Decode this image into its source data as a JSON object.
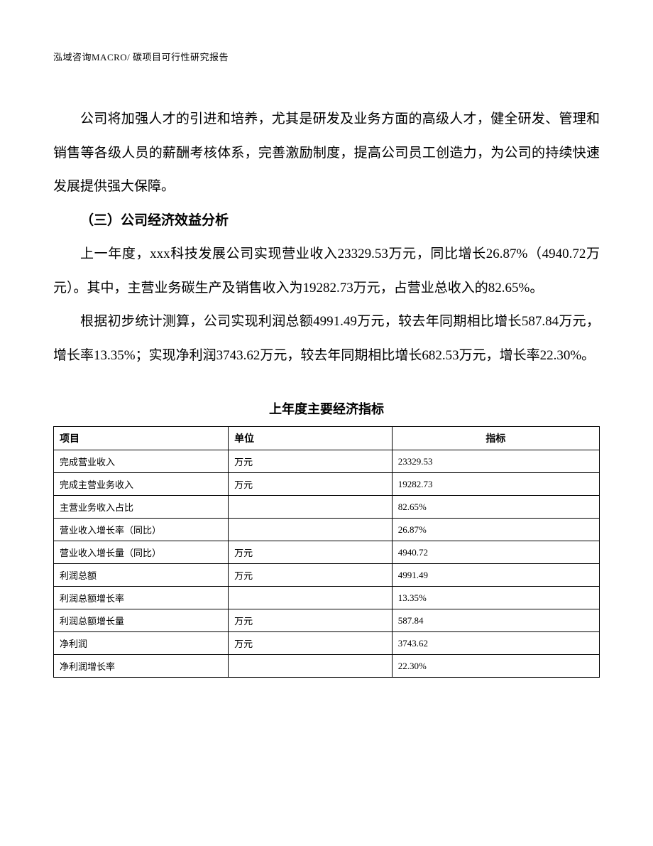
{
  "header": "泓域咨询MACRO/    碳项目可行性研究报告",
  "para1": "公司将加强人才的引进和培养，尤其是研发及业务方面的高级人才，健全研发、管理和销售等各级人员的薪酬考核体系，完善激励制度，提高公司员工创造力，为公司的持续快速发展提供强大保障。",
  "section_heading": "（三）公司经济效益分析",
  "para2": "上一年度，xxx科技发展公司实现营业收入23329.53万元，同比增长26.87%（4940.72万元）。其中，主营业务碳生产及销售收入为19282.73万元，占营业总收入的82.65%。",
  "para3": "根据初步统计测算，公司实现利润总额4991.49万元，较去年同期相比增长587.84万元，增长率13.35%；实现净利润3743.62万元，较去年同期相比增长682.53万元，增长率22.30%。",
  "table": {
    "title": "上年度主要经济指标",
    "columns": [
      "项目",
      "单位",
      "指标"
    ],
    "rows": [
      [
        "完成营业收入",
        "万元",
        "23329.53"
      ],
      [
        "完成主营业务收入",
        "万元",
        "19282.73"
      ],
      [
        "主营业务收入占比",
        "",
        "82.65%"
      ],
      [
        "营业收入增长率（同比）",
        "",
        "26.87%"
      ],
      [
        "营业收入增长量（同比）",
        "万元",
        "4940.72"
      ],
      [
        "利润总额",
        "万元",
        "4991.49"
      ],
      [
        "利润总额增长率",
        "",
        "13.35%"
      ],
      [
        "利润总额增长量",
        "万元",
        "587.84"
      ],
      [
        "净利润",
        "万元",
        "3743.62"
      ],
      [
        "净利润增长率",
        "",
        "22.30%"
      ]
    ]
  }
}
